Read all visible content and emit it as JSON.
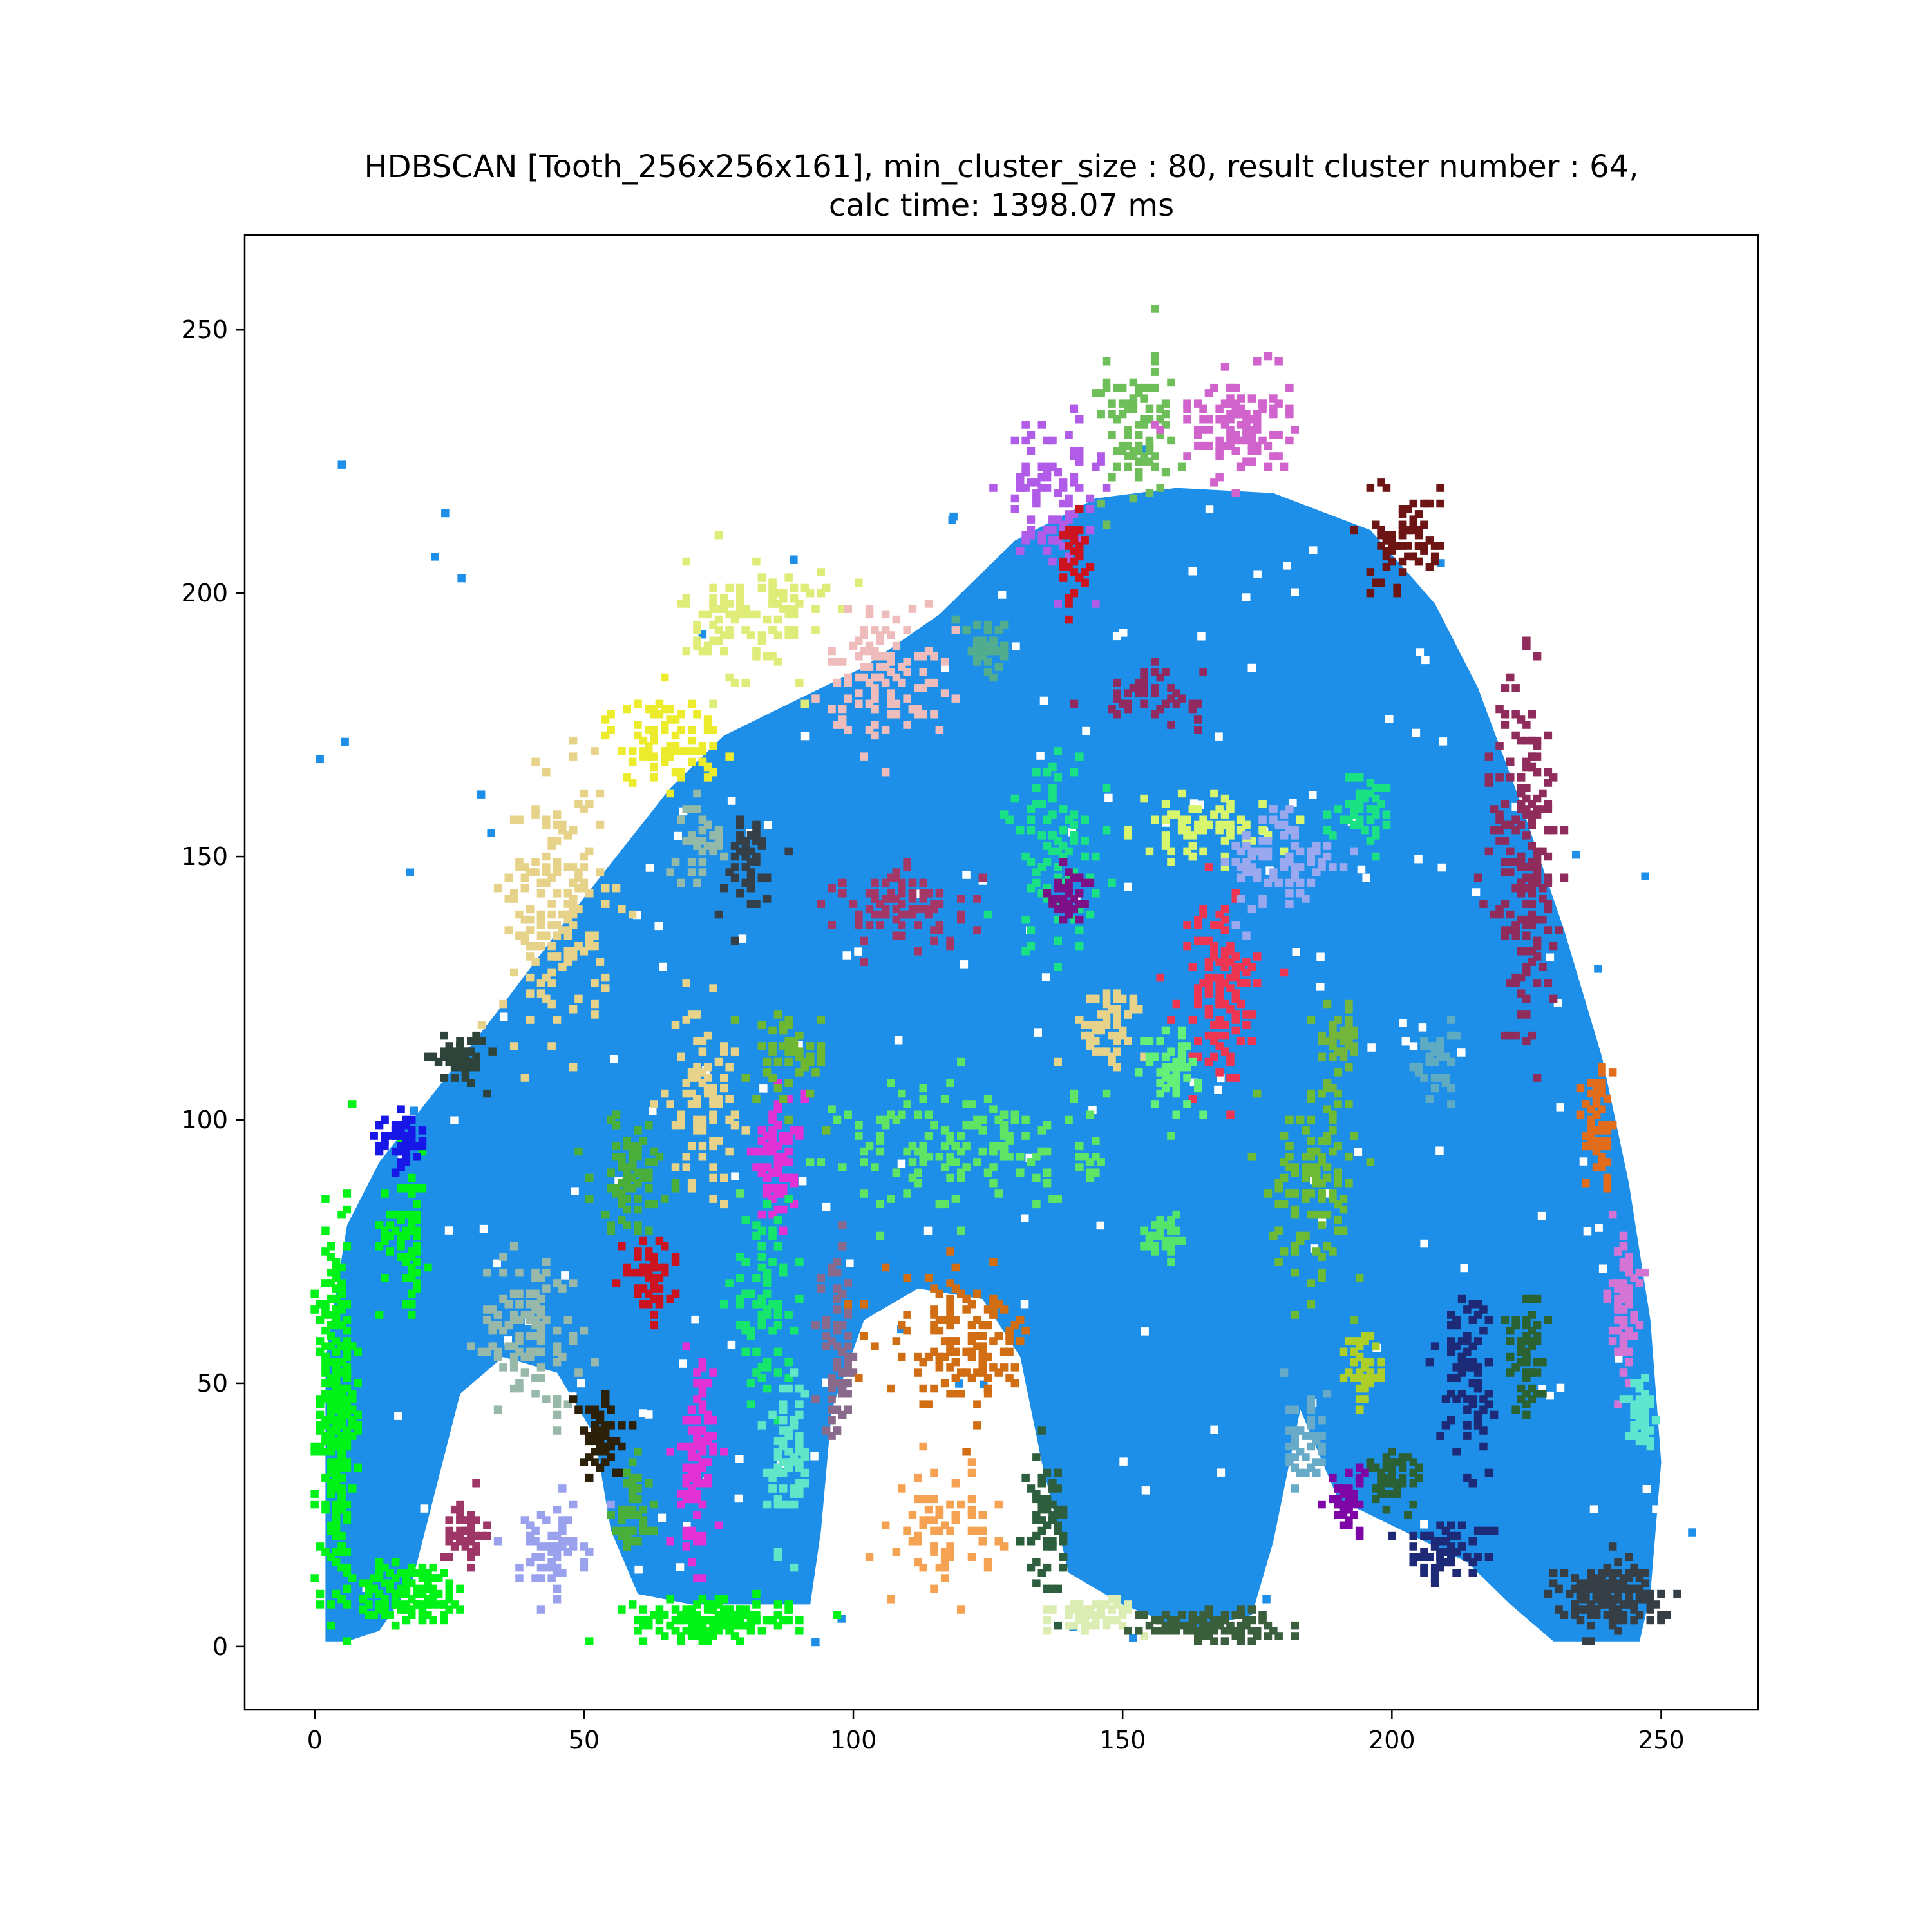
{
  "chart_data": {
    "type": "scatter",
    "title_lines": [
      "HDBSCAN [Tooth_256x256x161], min_cluster_size : 80, result cluster number : 64,",
      "calc time: 1398.07 ms"
    ],
    "xlabel": "",
    "ylabel": "",
    "xlim": [
      -13,
      268
    ],
    "ylim": [
      -12,
      268
    ],
    "xticks": [
      0,
      50,
      100,
      150,
      200,
      250
    ],
    "yticks": [
      0,
      50,
      100,
      150,
      200,
      250
    ],
    "grid": false,
    "legend": "none",
    "colors": {
      "main": "#1e8fe8",
      "frame": "#000000",
      "background": "#ffffff"
    },
    "dominant_cluster": {
      "name": "main",
      "outline": [
        [
          2,
          1
        ],
        [
          2,
          55
        ],
        [
          6,
          80
        ],
        [
          12,
          92
        ],
        [
          22,
          105
        ],
        [
          35,
          122
        ],
        [
          46,
          137
        ],
        [
          56,
          150
        ],
        [
          66,
          163
        ],
        [
          76,
          173
        ],
        [
          88,
          179
        ],
        [
          102,
          186
        ],
        [
          116,
          196
        ],
        [
          130,
          210
        ],
        [
          145,
          218
        ],
        [
          160,
          220
        ],
        [
          178,
          219
        ],
        [
          196,
          212
        ],
        [
          208,
          198
        ],
        [
          216,
          182
        ],
        [
          224,
          160
        ],
        [
          232,
          136
        ],
        [
          239,
          112
        ],
        [
          244,
          88
        ],
        [
          248,
          62
        ],
        [
          250,
          35
        ],
        [
          248,
          10
        ],
        [
          246,
          1
        ],
        [
          230,
          1
        ],
        [
          222,
          8
        ],
        [
          214,
          16
        ],
        [
          202,
          22
        ],
        [
          190,
          28
        ],
        [
          183,
          45
        ],
        [
          178,
          20
        ],
        [
          174,
          6
        ],
        [
          162,
          3
        ],
        [
          150,
          8
        ],
        [
          140,
          14
        ],
        [
          135,
          35
        ],
        [
          131,
          55
        ],
        [
          124,
          66
        ],
        [
          112,
          68
        ],
        [
          102,
          62
        ],
        [
          96,
          45
        ],
        [
          94,
          22
        ],
        [
          92,
          8
        ],
        [
          80,
          8
        ],
        [
          70,
          8
        ],
        [
          60,
          10
        ],
        [
          55,
          22
        ],
        [
          52,
          40
        ],
        [
          45,
          52
        ],
        [
          35,
          55
        ],
        [
          27,
          48
        ],
        [
          22,
          28
        ],
        [
          18,
          12
        ],
        [
          12,
          3
        ],
        [
          6,
          1
        ]
      ]
    },
    "clusters": [
      {
        "cx": 4,
        "cy": 45,
        "sx": 3,
        "sy": 28,
        "n": 320,
        "color": "#00f216"
      },
      {
        "cx": 18,
        "cy": 10,
        "sx": 9,
        "sy": 5,
        "n": 140,
        "color": "#00f216"
      },
      {
        "cx": 17,
        "cy": 80,
        "sx": 4,
        "sy": 12,
        "n": 70,
        "color": "#00f216"
      },
      {
        "cx": 74,
        "cy": 5,
        "sx": 12,
        "sy": 3,
        "n": 170,
        "color": "#00f216"
      },
      {
        "cx": 16,
        "cy": 96,
        "sx": 4,
        "sy": 4,
        "n": 60,
        "color": "#1717e8"
      },
      {
        "cx": 27,
        "cy": 112,
        "sx": 4,
        "sy": 4,
        "n": 55,
        "color": "#2e443a"
      },
      {
        "cx": 45,
        "cy": 140,
        "sx": 8,
        "sy": 20,
        "n": 170,
        "color": "#e6d389"
      },
      {
        "cx": 72,
        "cy": 105,
        "sx": 5,
        "sy": 14,
        "n": 90,
        "color": "#e6d389"
      },
      {
        "cx": 65,
        "cy": 172,
        "sx": 9,
        "sy": 7,
        "n": 90,
        "color": "#eceb2c"
      },
      {
        "cx": 82,
        "cy": 195,
        "sx": 11,
        "sy": 10,
        "n": 110,
        "color": "#dfec78"
      },
      {
        "cx": 106,
        "cy": 185,
        "sx": 9,
        "sy": 11,
        "n": 110,
        "color": "#efbcbc"
      },
      {
        "cx": 80,
        "cy": 148,
        "sx": 5,
        "sy": 9,
        "n": 50,
        "color": "#353f48"
      },
      {
        "cx": 72,
        "cy": 153,
        "sx": 4,
        "sy": 6,
        "n": 35,
        "color": "#93b9a9"
      },
      {
        "cx": 40,
        "cy": 60,
        "sx": 8,
        "sy": 12,
        "n": 110,
        "color": "#98b9aa"
      },
      {
        "cx": 28,
        "cy": 22,
        "sx": 3,
        "sy": 5,
        "n": 50,
        "color": "#9e3667"
      },
      {
        "cx": 44,
        "cy": 18,
        "sx": 5,
        "sy": 7,
        "n": 60,
        "color": "#9aa2ee"
      },
      {
        "cx": 53,
        "cy": 40,
        "sx": 4,
        "sy": 7,
        "n": 60,
        "color": "#2c2108"
      },
      {
        "cx": 71,
        "cy": 35,
        "sx": 2.5,
        "sy": 15,
        "n": 110,
        "color": "#e232d6"
      },
      {
        "cx": 62,
        "cy": 70,
        "sx": 4,
        "sy": 6,
        "n": 55,
        "color": "#cc1320"
      },
      {
        "cx": 59,
        "cy": 90,
        "sx": 6,
        "sy": 9,
        "n": 80,
        "color": "#4aae3a"
      },
      {
        "cx": 59,
        "cy": 25,
        "sx": 3,
        "sy": 8,
        "n": 50,
        "color": "#4aae3a"
      },
      {
        "cx": 86,
        "cy": 92,
        "sx": 4,
        "sy": 10,
        "n": 70,
        "color": "#e232d6"
      },
      {
        "cx": 83,
        "cy": 65,
        "sx": 5,
        "sy": 12,
        "n": 80,
        "color": "#16e66c"
      },
      {
        "cx": 89,
        "cy": 112,
        "sx": 6,
        "sy": 7,
        "n": 60,
        "color": "#6eb732"
      },
      {
        "cx": 97,
        "cy": 55,
        "sx": 3,
        "sy": 14,
        "n": 70,
        "color": "#8a6a8c"
      },
      {
        "cx": 88,
        "cy": 35,
        "sx": 3,
        "sy": 13,
        "n": 70,
        "color": "#61e6c8"
      },
      {
        "cx": 120,
        "cy": 58,
        "sx": 12,
        "sy": 10,
        "n": 130,
        "color": "#d16e14"
      },
      {
        "cx": 117,
        "cy": 22,
        "sx": 7,
        "sy": 9,
        "n": 70,
        "color": "#f6a253"
      },
      {
        "cx": 136,
        "cy": 25,
        "sx": 3,
        "sy": 10,
        "n": 60,
        "color": "#2d5f3e"
      },
      {
        "cx": 145,
        "cy": 6,
        "sx": 6,
        "sy": 3,
        "n": 60,
        "color": "#dbedb3"
      },
      {
        "cx": 165,
        "cy": 4,
        "sx": 11,
        "sy": 2.5,
        "n": 110,
        "color": "#3b5f3c"
      },
      {
        "cx": 110,
        "cy": 140,
        "sx": 11,
        "sy": 6,
        "n": 90,
        "color": "#a53766"
      },
      {
        "cx": 122,
        "cy": 95,
        "sx": 20,
        "sy": 10,
        "n": 150,
        "color": "#5fe563"
      },
      {
        "cx": 138,
        "cy": 150,
        "sx": 8,
        "sy": 15,
        "n": 90,
        "color": "#1ae284"
      },
      {
        "cx": 140,
        "cy": 142,
        "sx": 3,
        "sy": 4,
        "n": 40,
        "color": "#7d0f87"
      },
      {
        "cx": 165,
        "cy": 155,
        "sx": 10,
        "sy": 5,
        "n": 70,
        "color": "#d7f56d"
      },
      {
        "cx": 168,
        "cy": 125,
        "sx": 6,
        "sy": 14,
        "n": 120,
        "color": "#ee3653"
      },
      {
        "cx": 180,
        "cy": 148,
        "sx": 9,
        "sy": 10,
        "n": 80,
        "color": "#9aa8ef"
      },
      {
        "cx": 147,
        "cy": 118,
        "sx": 6,
        "sy": 6,
        "n": 55,
        "color": "#e6d389"
      },
      {
        "cx": 159,
        "cy": 110,
        "sx": 4,
        "sy": 6,
        "n": 50,
        "color": "#64ef78"
      },
      {
        "cx": 186,
        "cy": 90,
        "sx": 7,
        "sy": 16,
        "n": 120,
        "color": "#6dbb35"
      },
      {
        "cx": 195,
        "cy": 160,
        "sx": 5,
        "sy": 6,
        "n": 50,
        "color": "#1ae284"
      },
      {
        "cx": 155,
        "cy": 181,
        "sx": 8,
        "sy": 4,
        "n": 45,
        "color": "#912b5f"
      },
      {
        "cx": 137,
        "cy": 218,
        "sx": 7,
        "sy": 12,
        "n": 90,
        "color": "#b05ce8"
      },
      {
        "cx": 141,
        "cy": 208,
        "sx": 2,
        "sy": 8,
        "n": 40,
        "color": "#cc1320"
      },
      {
        "cx": 153,
        "cy": 230,
        "sx": 6,
        "sy": 12,
        "n": 90,
        "color": "#6ebe5a"
      },
      {
        "cx": 171,
        "cy": 232,
        "sx": 8,
        "sy": 8,
        "n": 110,
        "color": "#d064cc"
      },
      {
        "cx": 203,
        "cy": 210,
        "sx": 5,
        "sy": 8,
        "n": 80,
        "color": "#6d1515"
      },
      {
        "cx": 125,
        "cy": 190,
        "sx": 3,
        "sy": 4,
        "n": 40,
        "color": "#51ad8e"
      },
      {
        "cx": 225,
        "cy": 150,
        "sx": 5,
        "sy": 30,
        "n": 190,
        "color": "#8f2c5b"
      },
      {
        "cx": 238,
        "cy": 98,
        "sx": 2,
        "sy": 10,
        "n": 70,
        "color": "#e06c1c"
      },
      {
        "cx": 243,
        "cy": 67,
        "sx": 2,
        "sy": 10,
        "n": 70,
        "color": "#d475d6"
      },
      {
        "cx": 246,
        "cy": 44,
        "sx": 2,
        "sy": 5,
        "n": 55,
        "color": "#5ee6cf"
      },
      {
        "cx": 240,
        "cy": 10,
        "sx": 8,
        "sy": 5,
        "n": 170,
        "color": "#373f46"
      },
      {
        "cx": 214,
        "cy": 50,
        "sx": 4,
        "sy": 16,
        "n": 90,
        "color": "#1d2a78"
      },
      {
        "cx": 210,
        "cy": 18,
        "sx": 7,
        "sy": 4,
        "n": 60,
        "color": "#1d2a78"
      },
      {
        "cx": 200,
        "cy": 32,
        "sx": 4,
        "sy": 5,
        "n": 50,
        "color": "#2b6135"
      },
      {
        "cx": 192,
        "cy": 28,
        "sx": 3,
        "sy": 5,
        "n": 45,
        "color": "#7f06a6"
      },
      {
        "cx": 195,
        "cy": 52,
        "sx": 3,
        "sy": 6,
        "n": 40,
        "color": "#aecf28"
      },
      {
        "cx": 225,
        "cy": 55,
        "sx": 3,
        "sy": 10,
        "n": 50,
        "color": "#2a6331"
      },
      {
        "cx": 190,
        "cy": 115,
        "sx": 3,
        "sy": 7,
        "n": 40,
        "color": "#74b63b"
      },
      {
        "cx": 208,
        "cy": 110,
        "sx": 3,
        "sy": 6,
        "n": 35,
        "color": "#5fabc2"
      },
      {
        "cx": 184,
        "cy": 40,
        "sx": 4,
        "sy": 8,
        "n": 40,
        "color": "#68abc8"
      },
      {
        "cx": 158,
        "cy": 78,
        "sx": 3,
        "sy": 4,
        "n": 35,
        "color": "#56e56b"
      }
    ]
  }
}
